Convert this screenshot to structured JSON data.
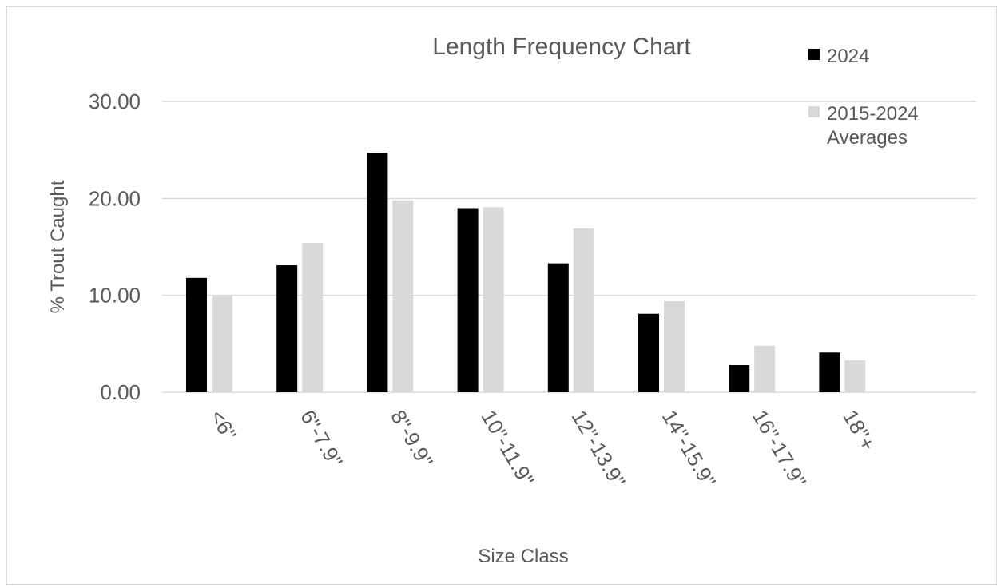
{
  "chart_data": {
    "type": "bar",
    "title": "Length Frequency Chart",
    "xlabel": "Size Class",
    "ylabel": "% Trout Caught",
    "ylim": [
      0,
      30
    ],
    "yticks": [
      "0.00",
      "10.00",
      "20.00",
      "30.00"
    ],
    "grid": true,
    "legend_position": "top-right",
    "categories": [
      "<6\"",
      "6\"-7.9\"",
      "8\"-9.9\"",
      "10\"-11.9\"",
      "12\"-13.9\"",
      "14\"-15.9\"",
      "16\"-17.9\"",
      "18\"+"
    ],
    "series": [
      {
        "name": "2024",
        "color": "#000000",
        "values": [
          11.8,
          13.1,
          24.7,
          19.0,
          13.3,
          8.1,
          2.8,
          4.1
        ]
      },
      {
        "name": "2015-2024 Averages",
        "name_lines": [
          "2015-2024",
          "Averages"
        ],
        "color": "#d9d9d9",
        "values": [
          10.0,
          15.4,
          19.8,
          19.1,
          16.9,
          9.4,
          4.8,
          3.3
        ]
      }
    ]
  },
  "colors": {
    "gridline": "#d9d9d9",
    "text": "#595959",
    "border": "#d9d9d9"
  }
}
